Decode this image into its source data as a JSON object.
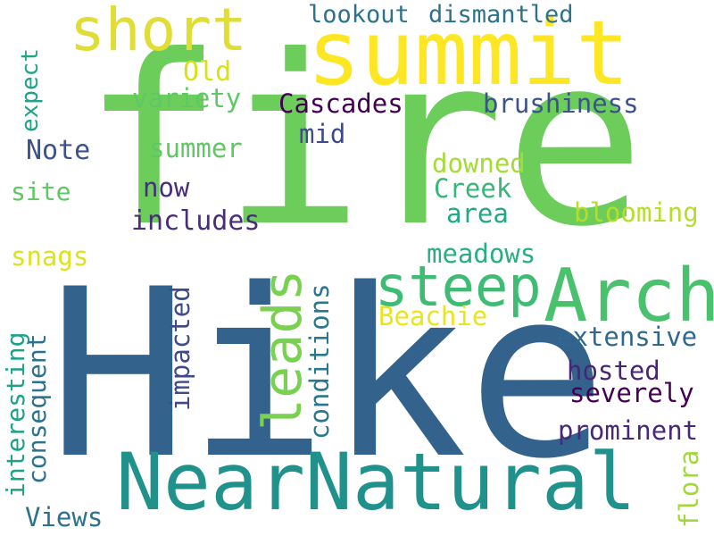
{
  "words": [
    {
      "text": "fire",
      "color": "#6ccd5a"
    },
    {
      "text": "Hike",
      "color": "#33638d"
    },
    {
      "text": "summit",
      "color": "#fde725"
    },
    {
      "text": "NearNatural",
      "color": "#21918c"
    },
    {
      "text": "Arch",
      "color": "#4ac16d"
    },
    {
      "text": "leads",
      "color": "#7ad151"
    },
    {
      "text": "steep",
      "color": "#3fbc73"
    },
    {
      "text": "short",
      "color": "#e1dd37"
    },
    {
      "text": "Old",
      "color": "#d8e219"
    },
    {
      "text": "lookout",
      "color": "#2c728e"
    },
    {
      "text": "dismantled",
      "color": "#2c728e"
    },
    {
      "text": "variety",
      "color": "#5ec962"
    },
    {
      "text": "Cascades",
      "color": "#440154"
    },
    {
      "text": "brushiness",
      "color": "#3b528b"
    },
    {
      "text": "mid",
      "color": "#3e4a89"
    },
    {
      "text": "expect",
      "color": "#20a386"
    },
    {
      "text": "Note",
      "color": "#3b528b"
    },
    {
      "text": "summer",
      "color": "#5ec962"
    },
    {
      "text": "downed",
      "color": "#a5db36"
    },
    {
      "text": "now",
      "color": "#472d7b"
    },
    {
      "text": "Creek",
      "color": "#35b779"
    },
    {
      "text": "site",
      "color": "#5ec962"
    },
    {
      "text": "area",
      "color": "#22a884"
    },
    {
      "text": "blooming",
      "color": "#b5de2b"
    },
    {
      "text": "includes",
      "color": "#472d7b"
    },
    {
      "text": "snags",
      "color": "#dde318"
    },
    {
      "text": "meadows",
      "color": "#28ae80"
    },
    {
      "text": "impacted",
      "color": "#3e4a89"
    },
    {
      "text": "Beachie",
      "color": "#eae51a"
    },
    {
      "text": "interesting",
      "color": "#1fa188"
    },
    {
      "text": "consequent",
      "color": "#2c728e"
    },
    {
      "text": "conditions",
      "color": "#2a788e"
    },
    {
      "text": "extensive",
      "color": "#31688e"
    },
    {
      "text": "hosted",
      "color": "#482475"
    },
    {
      "text": "severely",
      "color": "#440154"
    },
    {
      "text": "prominent",
      "color": "#482878"
    },
    {
      "text": "Views",
      "color": "#2c728e"
    },
    {
      "text": "flora",
      "color": "#a0da39"
    }
  ]
}
